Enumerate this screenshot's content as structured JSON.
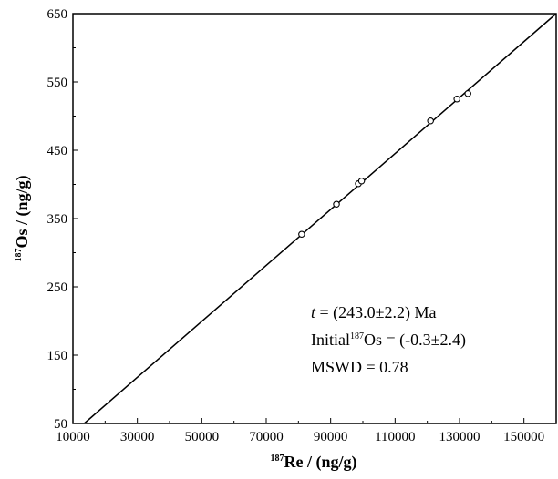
{
  "chart_data": {
    "type": "scatter",
    "x_label": {
      "sup": "187",
      "text": "Re / (ng/g)"
    },
    "y_label": {
      "sup": "187",
      "text": "Os / (ng/g)"
    },
    "xlim": [
      10000,
      160000
    ],
    "ylim": [
      50,
      650
    ],
    "x_ticks_major": [
      10000,
      30000,
      50000,
      70000,
      90000,
      110000,
      130000,
      150000
    ],
    "y_ticks_major": [
      50,
      150,
      250,
      350,
      450,
      550,
      650
    ],
    "x_tick_labels": [
      "10000",
      "30000",
      "50000",
      "70000",
      "90000",
      "110000",
      "130000",
      "150000"
    ],
    "y_tick_labels": [
      "50",
      "150",
      "250",
      "350",
      "450",
      "550",
      "650"
    ],
    "points": [
      {
        "x": 81000,
        "y": 327
      },
      {
        "x": 91800,
        "y": 371
      },
      {
        "x": 98600,
        "y": 401
      },
      {
        "x": 99600,
        "y": 405
      },
      {
        "x": 121000,
        "y": 493
      },
      {
        "x": 129200,
        "y": 525
      },
      {
        "x": 132600,
        "y": 533
      }
    ],
    "regression_line": {
      "x": [
        13500,
        160000
      ],
      "y": [
        50,
        650
      ]
    },
    "annotations": {
      "age": {
        "var": "t",
        "text": " = (243.0±2.2) Ma"
      },
      "initial": {
        "prefix": "Initial",
        "sup": "187",
        "text": "Os = (-0.3±2.4)"
      },
      "mswd": "MSWD = 0.78"
    },
    "grid": false,
    "legend": "none"
  }
}
